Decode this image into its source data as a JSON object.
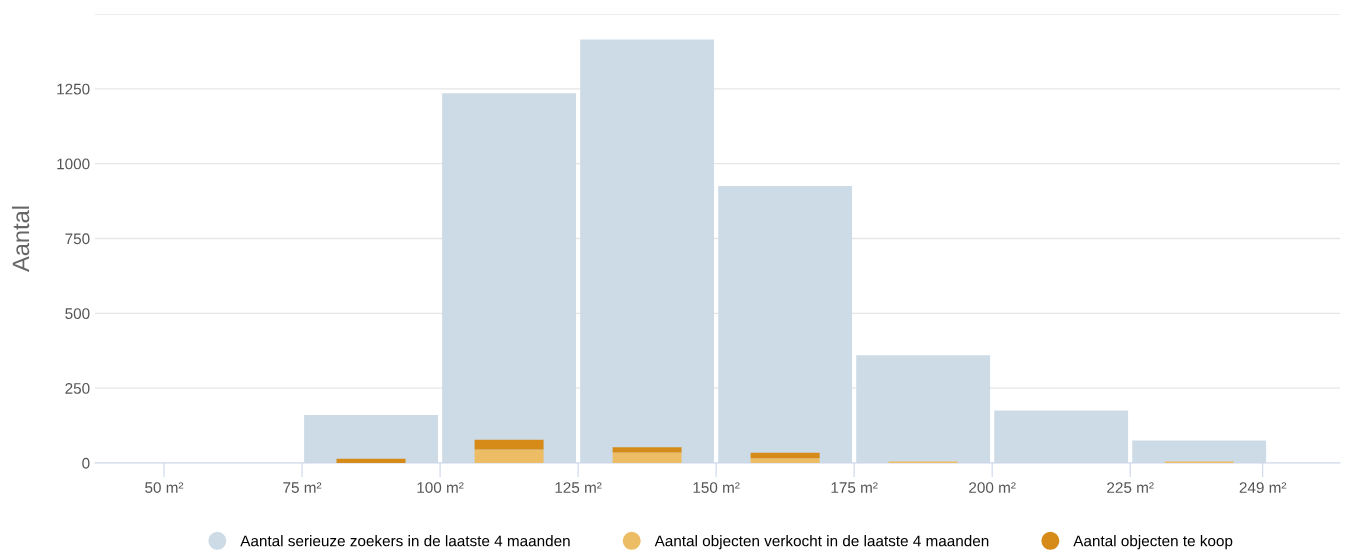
{
  "chart_data": {
    "type": "bar",
    "ylabel": "Aantal",
    "x": [
      62.5,
      87.5,
      112.5,
      137.5,
      162.5,
      187.5,
      212.5,
      237.5
    ],
    "series": [
      {
        "name": "Aantal serieuze zoekers in de laatste 4 maanden",
        "color": "#cddbe7",
        "values": [
          0,
          160,
          1235,
          1415,
          925,
          360,
          175,
          75
        ]
      },
      {
        "name": "Aantal objecten verkocht in de laatste 4 maanden",
        "color": "#edbd66",
        "values": [
          0,
          0,
          45,
          35,
          16,
          5,
          0,
          5
        ]
      },
      {
        "name": "Aantal objecten te koop",
        "color": "#d68a17",
        "values": [
          0,
          14,
          33,
          18,
          18,
          0,
          0,
          0
        ],
        "base": [
          null,
          0,
          45,
          35,
          16,
          null,
          null,
          null
        ]
      }
    ],
    "xlim": [
      37.5,
      263
    ],
    "xticks": [
      {
        "value": 50,
        "label": "50 m²"
      },
      {
        "value": 75,
        "label": "75 m²"
      },
      {
        "value": 100,
        "label": "100 m²"
      },
      {
        "value": 125,
        "label": "125 m²"
      },
      {
        "value": 150,
        "label": "150 m²"
      },
      {
        "value": 175,
        "label": "175 m²"
      },
      {
        "value": 200,
        "label": "200 m²"
      },
      {
        "value": 225,
        "label": "225 m²"
      },
      {
        "value": 249,
        "label": "249 m²"
      }
    ],
    "ylim": [
      0,
      1500
    ],
    "yticks": [
      0,
      250,
      500,
      750,
      1000,
      1250,
      {
        "value": 1500,
        "label": null
      }
    ],
    "grid": "y",
    "legend": "bottom",
    "marker": "circle"
  }
}
